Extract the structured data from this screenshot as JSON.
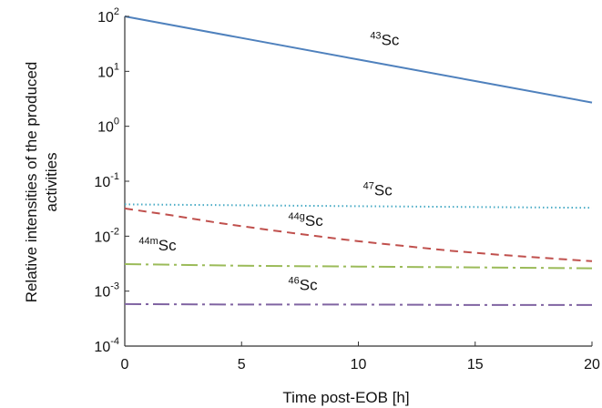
{
  "chart_data": {
    "type": "line",
    "xlabel": "Time  post-EOB [h]",
    "ylabel": "Relative intensities of the produced activities",
    "xlim": [
      0,
      20
    ],
    "ylim": [
      0.0001,
      100
    ],
    "yscale": "log",
    "grid": false,
    "x_ticks": [
      0,
      5,
      10,
      15,
      20
    ],
    "y_ticks": [
      {
        "value": 100,
        "base": "10",
        "exp": "2"
      },
      {
        "value": 10,
        "base": "10",
        "exp": "1"
      },
      {
        "value": 1,
        "base": "10",
        "exp": "0"
      },
      {
        "value": 0.1,
        "base": "10",
        "exp": "-1"
      },
      {
        "value": 0.01,
        "base": "10",
        "exp": "-2"
      },
      {
        "value": 0.001,
        "base": "10",
        "exp": "-3"
      },
      {
        "value": 0.0001,
        "base": "10",
        "exp": "-4"
      }
    ],
    "series": [
      {
        "name": "43Sc",
        "mass": "43",
        "element": "Sc",
        "color": "#4f81bd",
        "style": "solid",
        "x": [
          0,
          5,
          10,
          15,
          20
        ],
        "y": [
          100,
          40.5,
          16.4,
          6.65,
          2.7
        ],
        "label_at": {
          "x": 10.5,
          "y": 30
        }
      },
      {
        "name": "47Sc",
        "mass": "47",
        "element": "Sc",
        "color": "#4bacc6",
        "style": "dotted",
        "x": [
          0,
          5,
          10,
          15,
          20
        ],
        "y": [
          0.038,
          0.0365,
          0.0352,
          0.034,
          0.0328
        ],
        "label_at": {
          "x": 10.2,
          "y": 0.055
        }
      },
      {
        "name": "44gSc",
        "mass": "44g",
        "element": "Sc",
        "color": "#c0504d",
        "style": "dashed",
        "x": [
          0,
          2,
          4,
          6,
          8,
          10,
          12,
          14,
          16,
          18,
          20
        ],
        "y": [
          0.032,
          0.024,
          0.0175,
          0.0133,
          0.0103,
          0.0081,
          0.0066,
          0.0054,
          0.0046,
          0.004,
          0.0035
        ],
        "label_at": {
          "x": 7,
          "y": 0.0155
        }
      },
      {
        "name": "44mSc",
        "mass": "44m",
        "element": "Sc",
        "color": "#9bbb59",
        "style": "dashdot",
        "x": [
          0,
          5,
          10,
          15,
          20
        ],
        "y": [
          0.0031,
          0.0029,
          0.0028,
          0.0027,
          0.0026
        ],
        "label_at": {
          "x": 0.6,
          "y": 0.0055
        }
      },
      {
        "name": "46Sc",
        "mass": "46",
        "element": "Sc",
        "color": "#8064a2",
        "style": "dashdot",
        "x": [
          0,
          5,
          10,
          15,
          20
        ],
        "y": [
          0.00058,
          0.00057,
          0.00057,
          0.00056,
          0.00056
        ],
        "label_at": {
          "x": 7,
          "y": 0.00105
        }
      }
    ]
  }
}
